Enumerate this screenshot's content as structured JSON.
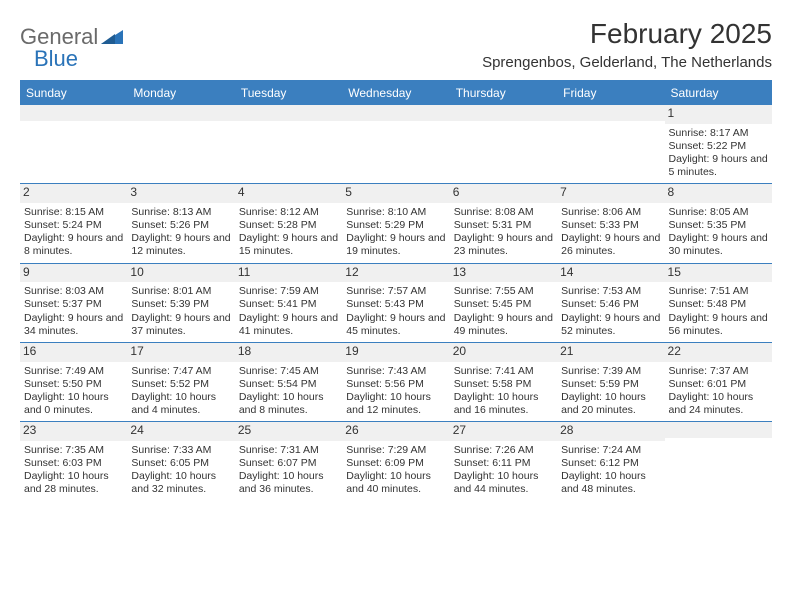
{
  "brand": {
    "part1": "General",
    "part2": "Blue",
    "logo_color": "#2a73b8",
    "text_color": "#6a6a6a"
  },
  "title": "February 2025",
  "location": "Sprengenbos, Gelderland, The Netherlands",
  "colors": {
    "header_bar": "#3b7fbf",
    "row_divider": "#3b7fbf",
    "daynum_bg": "#f0f0f0",
    "text": "#333333",
    "background": "#ffffff"
  },
  "dow": [
    "Sunday",
    "Monday",
    "Tuesday",
    "Wednesday",
    "Thursday",
    "Friday",
    "Saturday"
  ],
  "weeks": [
    [
      null,
      null,
      null,
      null,
      null,
      null,
      {
        "d": "1",
        "sr": "Sunrise: 8:17 AM",
        "ss": "Sunset: 5:22 PM",
        "dl": "Daylight: 9 hours and 5 minutes."
      }
    ],
    [
      {
        "d": "2",
        "sr": "Sunrise: 8:15 AM",
        "ss": "Sunset: 5:24 PM",
        "dl": "Daylight: 9 hours and 8 minutes."
      },
      {
        "d": "3",
        "sr": "Sunrise: 8:13 AM",
        "ss": "Sunset: 5:26 PM",
        "dl": "Daylight: 9 hours and 12 minutes."
      },
      {
        "d": "4",
        "sr": "Sunrise: 8:12 AM",
        "ss": "Sunset: 5:28 PM",
        "dl": "Daylight: 9 hours and 15 minutes."
      },
      {
        "d": "5",
        "sr": "Sunrise: 8:10 AM",
        "ss": "Sunset: 5:29 PM",
        "dl": "Daylight: 9 hours and 19 minutes."
      },
      {
        "d": "6",
        "sr": "Sunrise: 8:08 AM",
        "ss": "Sunset: 5:31 PM",
        "dl": "Daylight: 9 hours and 23 minutes."
      },
      {
        "d": "7",
        "sr": "Sunrise: 8:06 AM",
        "ss": "Sunset: 5:33 PM",
        "dl": "Daylight: 9 hours and 26 minutes."
      },
      {
        "d": "8",
        "sr": "Sunrise: 8:05 AM",
        "ss": "Sunset: 5:35 PM",
        "dl": "Daylight: 9 hours and 30 minutes."
      }
    ],
    [
      {
        "d": "9",
        "sr": "Sunrise: 8:03 AM",
        "ss": "Sunset: 5:37 PM",
        "dl": "Daylight: 9 hours and 34 minutes."
      },
      {
        "d": "10",
        "sr": "Sunrise: 8:01 AM",
        "ss": "Sunset: 5:39 PM",
        "dl": "Daylight: 9 hours and 37 minutes."
      },
      {
        "d": "11",
        "sr": "Sunrise: 7:59 AM",
        "ss": "Sunset: 5:41 PM",
        "dl": "Daylight: 9 hours and 41 minutes."
      },
      {
        "d": "12",
        "sr": "Sunrise: 7:57 AM",
        "ss": "Sunset: 5:43 PM",
        "dl": "Daylight: 9 hours and 45 minutes."
      },
      {
        "d": "13",
        "sr": "Sunrise: 7:55 AM",
        "ss": "Sunset: 5:45 PM",
        "dl": "Daylight: 9 hours and 49 minutes."
      },
      {
        "d": "14",
        "sr": "Sunrise: 7:53 AM",
        "ss": "Sunset: 5:46 PM",
        "dl": "Daylight: 9 hours and 52 minutes."
      },
      {
        "d": "15",
        "sr": "Sunrise: 7:51 AM",
        "ss": "Sunset: 5:48 PM",
        "dl": "Daylight: 9 hours and 56 minutes."
      }
    ],
    [
      {
        "d": "16",
        "sr": "Sunrise: 7:49 AM",
        "ss": "Sunset: 5:50 PM",
        "dl": "Daylight: 10 hours and 0 minutes."
      },
      {
        "d": "17",
        "sr": "Sunrise: 7:47 AM",
        "ss": "Sunset: 5:52 PM",
        "dl": "Daylight: 10 hours and 4 minutes."
      },
      {
        "d": "18",
        "sr": "Sunrise: 7:45 AM",
        "ss": "Sunset: 5:54 PM",
        "dl": "Daylight: 10 hours and 8 minutes."
      },
      {
        "d": "19",
        "sr": "Sunrise: 7:43 AM",
        "ss": "Sunset: 5:56 PM",
        "dl": "Daylight: 10 hours and 12 minutes."
      },
      {
        "d": "20",
        "sr": "Sunrise: 7:41 AM",
        "ss": "Sunset: 5:58 PM",
        "dl": "Daylight: 10 hours and 16 minutes."
      },
      {
        "d": "21",
        "sr": "Sunrise: 7:39 AM",
        "ss": "Sunset: 5:59 PM",
        "dl": "Daylight: 10 hours and 20 minutes."
      },
      {
        "d": "22",
        "sr": "Sunrise: 7:37 AM",
        "ss": "Sunset: 6:01 PM",
        "dl": "Daylight: 10 hours and 24 minutes."
      }
    ],
    [
      {
        "d": "23",
        "sr": "Sunrise: 7:35 AM",
        "ss": "Sunset: 6:03 PM",
        "dl": "Daylight: 10 hours and 28 minutes."
      },
      {
        "d": "24",
        "sr": "Sunrise: 7:33 AM",
        "ss": "Sunset: 6:05 PM",
        "dl": "Daylight: 10 hours and 32 minutes."
      },
      {
        "d": "25",
        "sr": "Sunrise: 7:31 AM",
        "ss": "Sunset: 6:07 PM",
        "dl": "Daylight: 10 hours and 36 minutes."
      },
      {
        "d": "26",
        "sr": "Sunrise: 7:29 AM",
        "ss": "Sunset: 6:09 PM",
        "dl": "Daylight: 10 hours and 40 minutes."
      },
      {
        "d": "27",
        "sr": "Sunrise: 7:26 AM",
        "ss": "Sunset: 6:11 PM",
        "dl": "Daylight: 10 hours and 44 minutes."
      },
      {
        "d": "28",
        "sr": "Sunrise: 7:24 AM",
        "ss": "Sunset: 6:12 PM",
        "dl": "Daylight: 10 hours and 48 minutes."
      },
      null
    ]
  ]
}
